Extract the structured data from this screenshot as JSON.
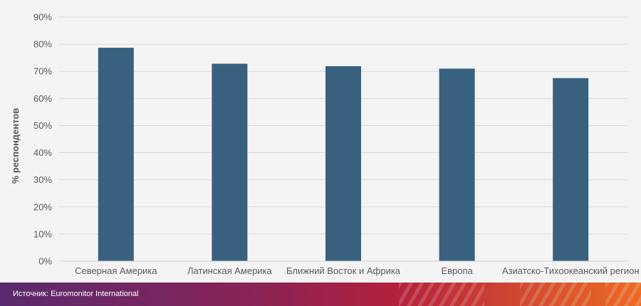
{
  "chart_data": {
    "type": "bar",
    "categories": [
      "Северная Америка",
      "Латинская Америка",
      "Ближний Восток и Африка",
      "Европа",
      "Азиатско-Тихоокеанский регион"
    ],
    "values": [
      78.7,
      72.8,
      71.9,
      71.0,
      67.5
    ],
    "ylabel": "% респондентов",
    "ylim": [
      0,
      90
    ],
    "yticks": [
      "0%",
      "10%",
      "20%",
      "30%",
      "40%",
      "50%",
      "60%",
      "70%",
      "80%",
      "90%"
    ],
    "grid": true,
    "bar_color": "#386180"
  },
  "footer": {
    "source": "Источник: Euromonitor International"
  }
}
